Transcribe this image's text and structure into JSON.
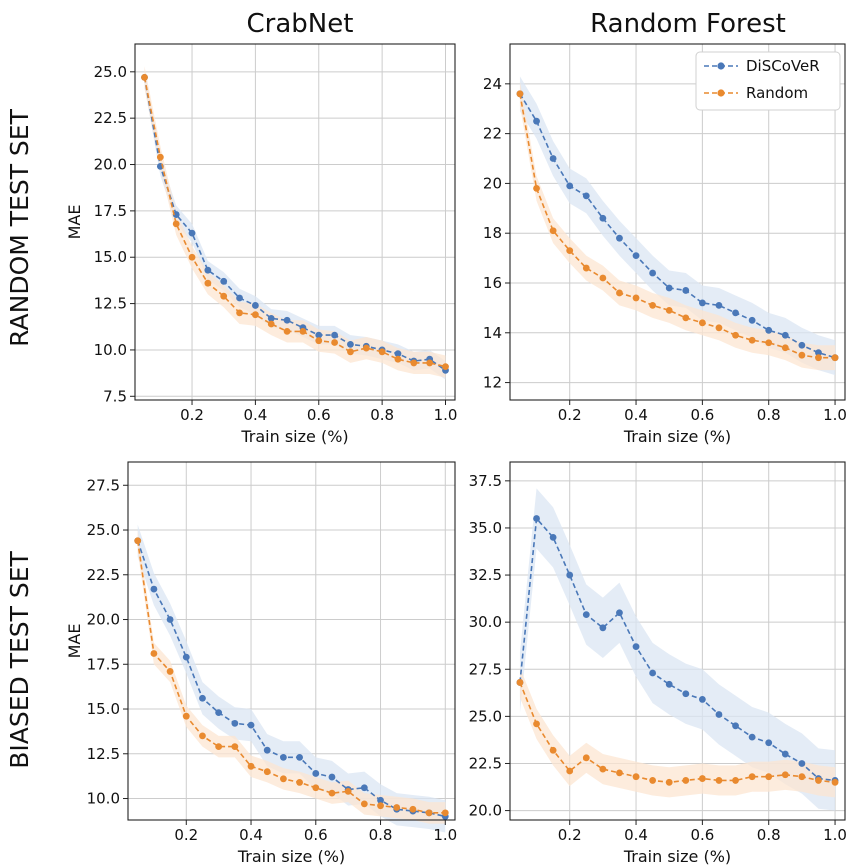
{
  "column_titles": [
    "CrabNet",
    "Random Forest"
  ],
  "row_titles": [
    "RANDOM TEST SET",
    "BIASED TEST SET"
  ],
  "legend": {
    "position": "top-right",
    "entries": [
      "DiSCoVeR",
      "Random"
    ]
  },
  "colors": {
    "discover": "#4a78b8",
    "random": "#e98a2f",
    "discover_band": "#dbe6f3",
    "random_band": "#fce6d1",
    "grid": "#cccccc"
  },
  "chart_data": [
    {
      "type": "line",
      "panel": "random-crabnet",
      "xlabel": "Train size (%)",
      "ylabel": "MAE",
      "xlim": [
        0.02,
        1.03
      ],
      "ylim": [
        7.3,
        26.5
      ],
      "xticks": [
        0.2,
        0.4,
        0.6,
        0.8,
        1.0
      ],
      "xtick_labels": [
        "0.2",
        "0.4",
        "0.6",
        "0.8",
        "1.0"
      ],
      "yticks": [
        7.5,
        10.0,
        12.5,
        15.0,
        17.5,
        20.0,
        22.5,
        25.0
      ],
      "ytick_labels": [
        "7.5",
        "10.0",
        "12.5",
        "15.0",
        "17.5",
        "20.0",
        "22.5",
        "25.0"
      ],
      "grid": true,
      "x": [
        0.05,
        0.1,
        0.15,
        0.2,
        0.25,
        0.3,
        0.35,
        0.4,
        0.45,
        0.5,
        0.55,
        0.6,
        0.65,
        0.7,
        0.75,
        0.8,
        0.85,
        0.9,
        0.95,
        1.0
      ],
      "series": [
        {
          "name": "DiSCoVeR",
          "values": [
            24.7,
            19.9,
            17.3,
            16.3,
            14.3,
            13.7,
            12.8,
            12.4,
            11.7,
            11.6,
            11.2,
            10.8,
            10.8,
            10.3,
            10.2,
            10.0,
            9.8,
            9.4,
            9.5,
            8.9
          ],
          "band": 0.5
        },
        {
          "name": "Random",
          "values": [
            24.7,
            20.4,
            16.8,
            15.0,
            13.6,
            12.9,
            12.0,
            11.9,
            11.4,
            11.0,
            11.0,
            10.5,
            10.4,
            9.9,
            10.1,
            9.9,
            9.5,
            9.3,
            9.3,
            9.1
          ],
          "band": 0.6
        }
      ]
    },
    {
      "type": "line",
      "panel": "random-randomforest",
      "xlabel": "Train size (%)",
      "ylabel": "",
      "xlim": [
        0.02,
        1.03
      ],
      "ylim": [
        11.3,
        25.6
      ],
      "xticks": [
        0.2,
        0.4,
        0.6,
        0.8,
        1.0
      ],
      "xtick_labels": [
        "0.2",
        "0.4",
        "0.6",
        "0.8",
        "1.0"
      ],
      "yticks": [
        12,
        14,
        16,
        18,
        20,
        22,
        24
      ],
      "ytick_labels": [
        "12",
        "14",
        "16",
        "18",
        "20",
        "22",
        "24"
      ],
      "grid": true,
      "x": [
        0.05,
        0.1,
        0.15,
        0.2,
        0.25,
        0.3,
        0.35,
        0.4,
        0.45,
        0.5,
        0.55,
        0.6,
        0.65,
        0.7,
        0.75,
        0.8,
        0.85,
        0.9,
        0.95,
        1.0
      ],
      "series": [
        {
          "name": "DiSCoVeR",
          "values": [
            23.6,
            22.5,
            21.0,
            19.9,
            19.5,
            18.6,
            17.8,
            17.1,
            16.4,
            15.8,
            15.7,
            15.2,
            15.1,
            14.8,
            14.5,
            14.1,
            13.9,
            13.5,
            13.2,
            13.0
          ],
          "band": 0.7
        },
        {
          "name": "Random",
          "values": [
            23.6,
            19.8,
            18.1,
            17.3,
            16.6,
            16.2,
            15.6,
            15.4,
            15.1,
            14.9,
            14.6,
            14.4,
            14.2,
            13.9,
            13.7,
            13.6,
            13.4,
            13.1,
            13.0,
            13.0
          ],
          "band": 0.5
        }
      ]
    },
    {
      "type": "line",
      "panel": "biased-crabnet",
      "xlabel": "Train size (%)",
      "ylabel": "MAE",
      "xlim": [
        0.02,
        1.03
      ],
      "ylim": [
        8.8,
        28.8
      ],
      "xticks": [
        0.2,
        0.4,
        0.6,
        0.8,
        1.0
      ],
      "xtick_labels": [
        "0.2",
        "0.4",
        "0.6",
        "0.8",
        "1.0"
      ],
      "yticks": [
        10.0,
        12.5,
        15.0,
        17.5,
        20.0,
        22.5,
        25.0,
        27.5
      ],
      "ytick_labels": [
        "10.0",
        "12.5",
        "15.0",
        "17.5",
        "20.0",
        "22.5",
        "25.0",
        "27.5"
      ],
      "grid": true,
      "x": [
        0.05,
        0.1,
        0.15,
        0.2,
        0.25,
        0.3,
        0.35,
        0.4,
        0.45,
        0.5,
        0.55,
        0.6,
        0.65,
        0.7,
        0.75,
        0.8,
        0.85,
        0.9,
        0.95,
        1.0
      ],
      "series": [
        {
          "name": "DiSCoVeR",
          "values": [
            24.4,
            21.7,
            20.0,
            17.9,
            15.6,
            14.8,
            14.2,
            14.1,
            12.7,
            12.3,
            12.3,
            11.4,
            11.2,
            10.5,
            10.6,
            9.9,
            9.4,
            9.3,
            9.2,
            9.0
          ],
          "band": 0.9
        },
        {
          "name": "Random",
          "values": [
            24.4,
            18.1,
            17.1,
            14.6,
            13.5,
            12.9,
            12.9,
            11.8,
            11.5,
            11.1,
            10.9,
            10.6,
            10.3,
            10.4,
            9.7,
            9.6,
            9.5,
            9.4,
            9.2,
            9.2
          ],
          "band": 0.6
        }
      ]
    },
    {
      "type": "line",
      "panel": "biased-randomforest",
      "xlabel": "Train size (%)",
      "ylabel": "",
      "xlim": [
        0.02,
        1.03
      ],
      "ylim": [
        19.5,
        38.5
      ],
      "xticks": [
        0.2,
        0.4,
        0.6,
        0.8,
        1.0
      ],
      "xtick_labels": [
        "0.2",
        "0.4",
        "0.6",
        "0.8",
        "1.0"
      ],
      "yticks": [
        20.0,
        22.5,
        25.0,
        27.5,
        30.0,
        32.5,
        35.0,
        37.5
      ],
      "ytick_labels": [
        "20.0",
        "22.5",
        "25.0",
        "27.5",
        "30.0",
        "32.5",
        "35.0",
        "37.5"
      ],
      "grid": true,
      "x": [
        0.05,
        0.1,
        0.15,
        0.2,
        0.25,
        0.3,
        0.35,
        0.4,
        0.45,
        0.5,
        0.55,
        0.6,
        0.65,
        0.7,
        0.75,
        0.8,
        0.85,
        0.9,
        0.95,
        1.0
      ],
      "series": [
        {
          "name": "DiSCoVeR",
          "values": [
            26.8,
            35.5,
            34.5,
            32.5,
            30.4,
            29.7,
            30.5,
            28.7,
            27.3,
            26.7,
            26.2,
            25.9,
            25.1,
            24.5,
            23.9,
            23.6,
            23.0,
            22.5,
            21.7,
            21.6
          ],
          "band": 1.6
        },
        {
          "name": "Random",
          "values": [
            26.8,
            24.6,
            23.2,
            22.1,
            22.8,
            22.2,
            22.0,
            21.8,
            21.6,
            21.5,
            21.6,
            21.7,
            21.6,
            21.6,
            21.8,
            21.8,
            21.9,
            21.8,
            21.6,
            21.5
          ],
          "band": 0.8
        }
      ]
    }
  ]
}
